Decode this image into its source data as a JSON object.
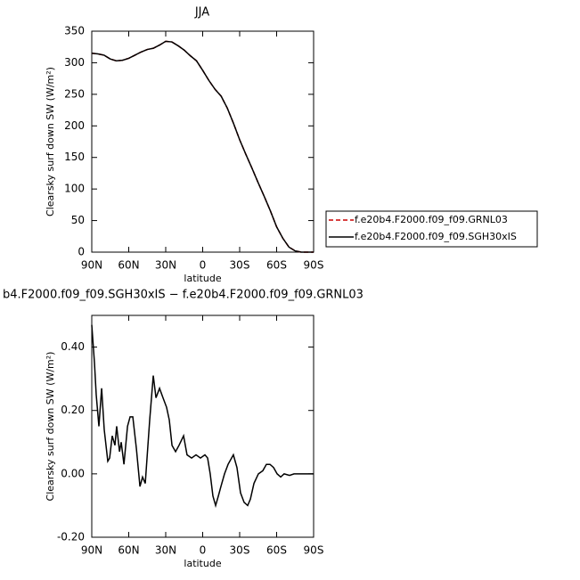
{
  "chart_data": [
    {
      "type": "line",
      "title": "JJA",
      "x_label": "latitude",
      "y_label": "Clearsky surf down SW (W/m²)",
      "x": [
        90,
        85,
        80,
        75,
        70,
        65,
        60,
        55,
        50,
        45,
        40,
        35,
        30,
        25,
        20,
        15,
        10,
        5,
        0,
        -5,
        -10,
        -15,
        -20,
        -25,
        -30,
        -35,
        -40,
        -45,
        -50,
        -55,
        -60,
        -65,
        -70,
        -75,
        -80,
        -85,
        -90
      ],
      "series": [
        {
          "name": "f.e20b4.F2000.f09_f09.GRNL03",
          "color": "#cc0000",
          "line_style": "dashed",
          "values": [
            315,
            314,
            312,
            306,
            303,
            304,
            307,
            312,
            317,
            321,
            323,
            328,
            334,
            333,
            327,
            320,
            311,
            303,
            288,
            272,
            258,
            247,
            228,
            204,
            178,
            155,
            133,
            110,
            88,
            65,
            40,
            22,
            8,
            2,
            0,
            0,
            0
          ]
        },
        {
          "name": "f.e20b4.F2000.f09_f09.SGH30xIS",
          "color": "#000000",
          "line_style": "solid",
          "values": [
            315,
            314,
            312,
            306,
            303,
            304,
            307,
            312,
            317,
            321,
            323,
            328,
            334,
            333,
            327,
            320,
            311,
            303,
            288,
            272,
            258,
            247,
            228,
            204,
            178,
            155,
            133,
            110,
            88,
            65,
            40,
            22,
            8,
            2,
            0,
            0,
            0
          ]
        }
      ],
      "xlim": [
        90,
        -90
      ],
      "xticks": [
        {
          "value": 90,
          "label": "90N"
        },
        {
          "value": 60,
          "label": "60N"
        },
        {
          "value": 30,
          "label": "30N"
        },
        0,
        {
          "value": -30,
          "label": "30S"
        },
        {
          "value": -60,
          "label": "60S"
        },
        {
          "value": -90,
          "label": "90S"
        }
      ],
      "ylim": [
        0,
        350
      ],
      "yticks": [
        0,
        50,
        100,
        150,
        200,
        250,
        300,
        350
      ],
      "legend": "right"
    },
    {
      "type": "line",
      "title": "b4.F2000.f09_f09.SGH30xIS − f.e20b4.F2000.f09_f09.GRNL03",
      "x_label": "latitude",
      "y_label": "Clearsky surf down SW (W/m²)",
      "x": [
        90,
        87.8,
        86.4,
        84.2,
        82.0,
        79.9,
        77.0,
        75.5,
        73.4,
        71.2,
        69.8,
        67.5,
        66.1,
        63.9,
        61.0,
        58.9,
        56.7,
        53.8,
        50.9,
        48.8,
        46.6,
        43.0,
        40.1,
        37.9,
        35.0,
        32.2,
        29.3,
        27.1,
        24.9,
        22.0,
        19.2,
        15.5,
        12.7,
        9.0,
        5.4,
        1.8,
        -1.8,
        -4.0,
        -6.1,
        -8.3,
        -10.5,
        -12.7,
        -14.8,
        -17.7,
        -20.6,
        -24.9,
        -27.8,
        -30.7,
        -33.6,
        -36.5,
        -38.7,
        -41.6,
        -45.2,
        -48.8,
        -51.7,
        -54.6,
        -57.5,
        -60.4,
        -63.3,
        -66.1,
        -70.5,
        -74.1,
        -90
      ],
      "values": [
        0.47,
        0.35,
        0.25,
        0.15,
        0.27,
        0.14,
        0.04,
        0.05,
        0.12,
        0.09,
        0.15,
        0.07,
        0.1,
        0.03,
        0.15,
        0.18,
        0.18,
        0.08,
        -0.04,
        -0.01,
        -0.03,
        0.17,
        0.31,
        0.24,
        0.27,
        0.24,
        0.21,
        0.17,
        0.09,
        0.07,
        0.09,
        0.12,
        0.06,
        0.05,
        0.06,
        0.05,
        0.06,
        0.05,
        0.0,
        -0.07,
        -0.1,
        -0.07,
        -0.04,
        0.0,
        0.03,
        0.06,
        0.02,
        -0.06,
        -0.09,
        -0.1,
        -0.08,
        -0.03,
        0.0,
        0.01,
        0.03,
        0.03,
        0.02,
        0.0,
        -0.01,
        0.0,
        -0.005,
        0.0,
        0.0
      ],
      "color": "#000000",
      "xlim": [
        90,
        -90
      ],
      "xticks": [
        {
          "value": 90,
          "label": "90N"
        },
        {
          "value": 60,
          "label": "60N"
        },
        {
          "value": 30,
          "label": "30N"
        },
        0,
        {
          "value": -30,
          "label": "30S"
        },
        {
          "value": -60,
          "label": "60S"
        },
        {
          "value": -90,
          "label": "90S"
        }
      ],
      "ylim": [
        -0.2,
        0.5
      ],
      "yticks": [
        {
          "value": -0.2,
          "label": "-0.20"
        },
        {
          "value": 0,
          "label": "0.00"
        },
        {
          "value": 0.2,
          "label": "0.20"
        },
        {
          "value": 0.4,
          "label": "0.40"
        }
      ]
    }
  ]
}
